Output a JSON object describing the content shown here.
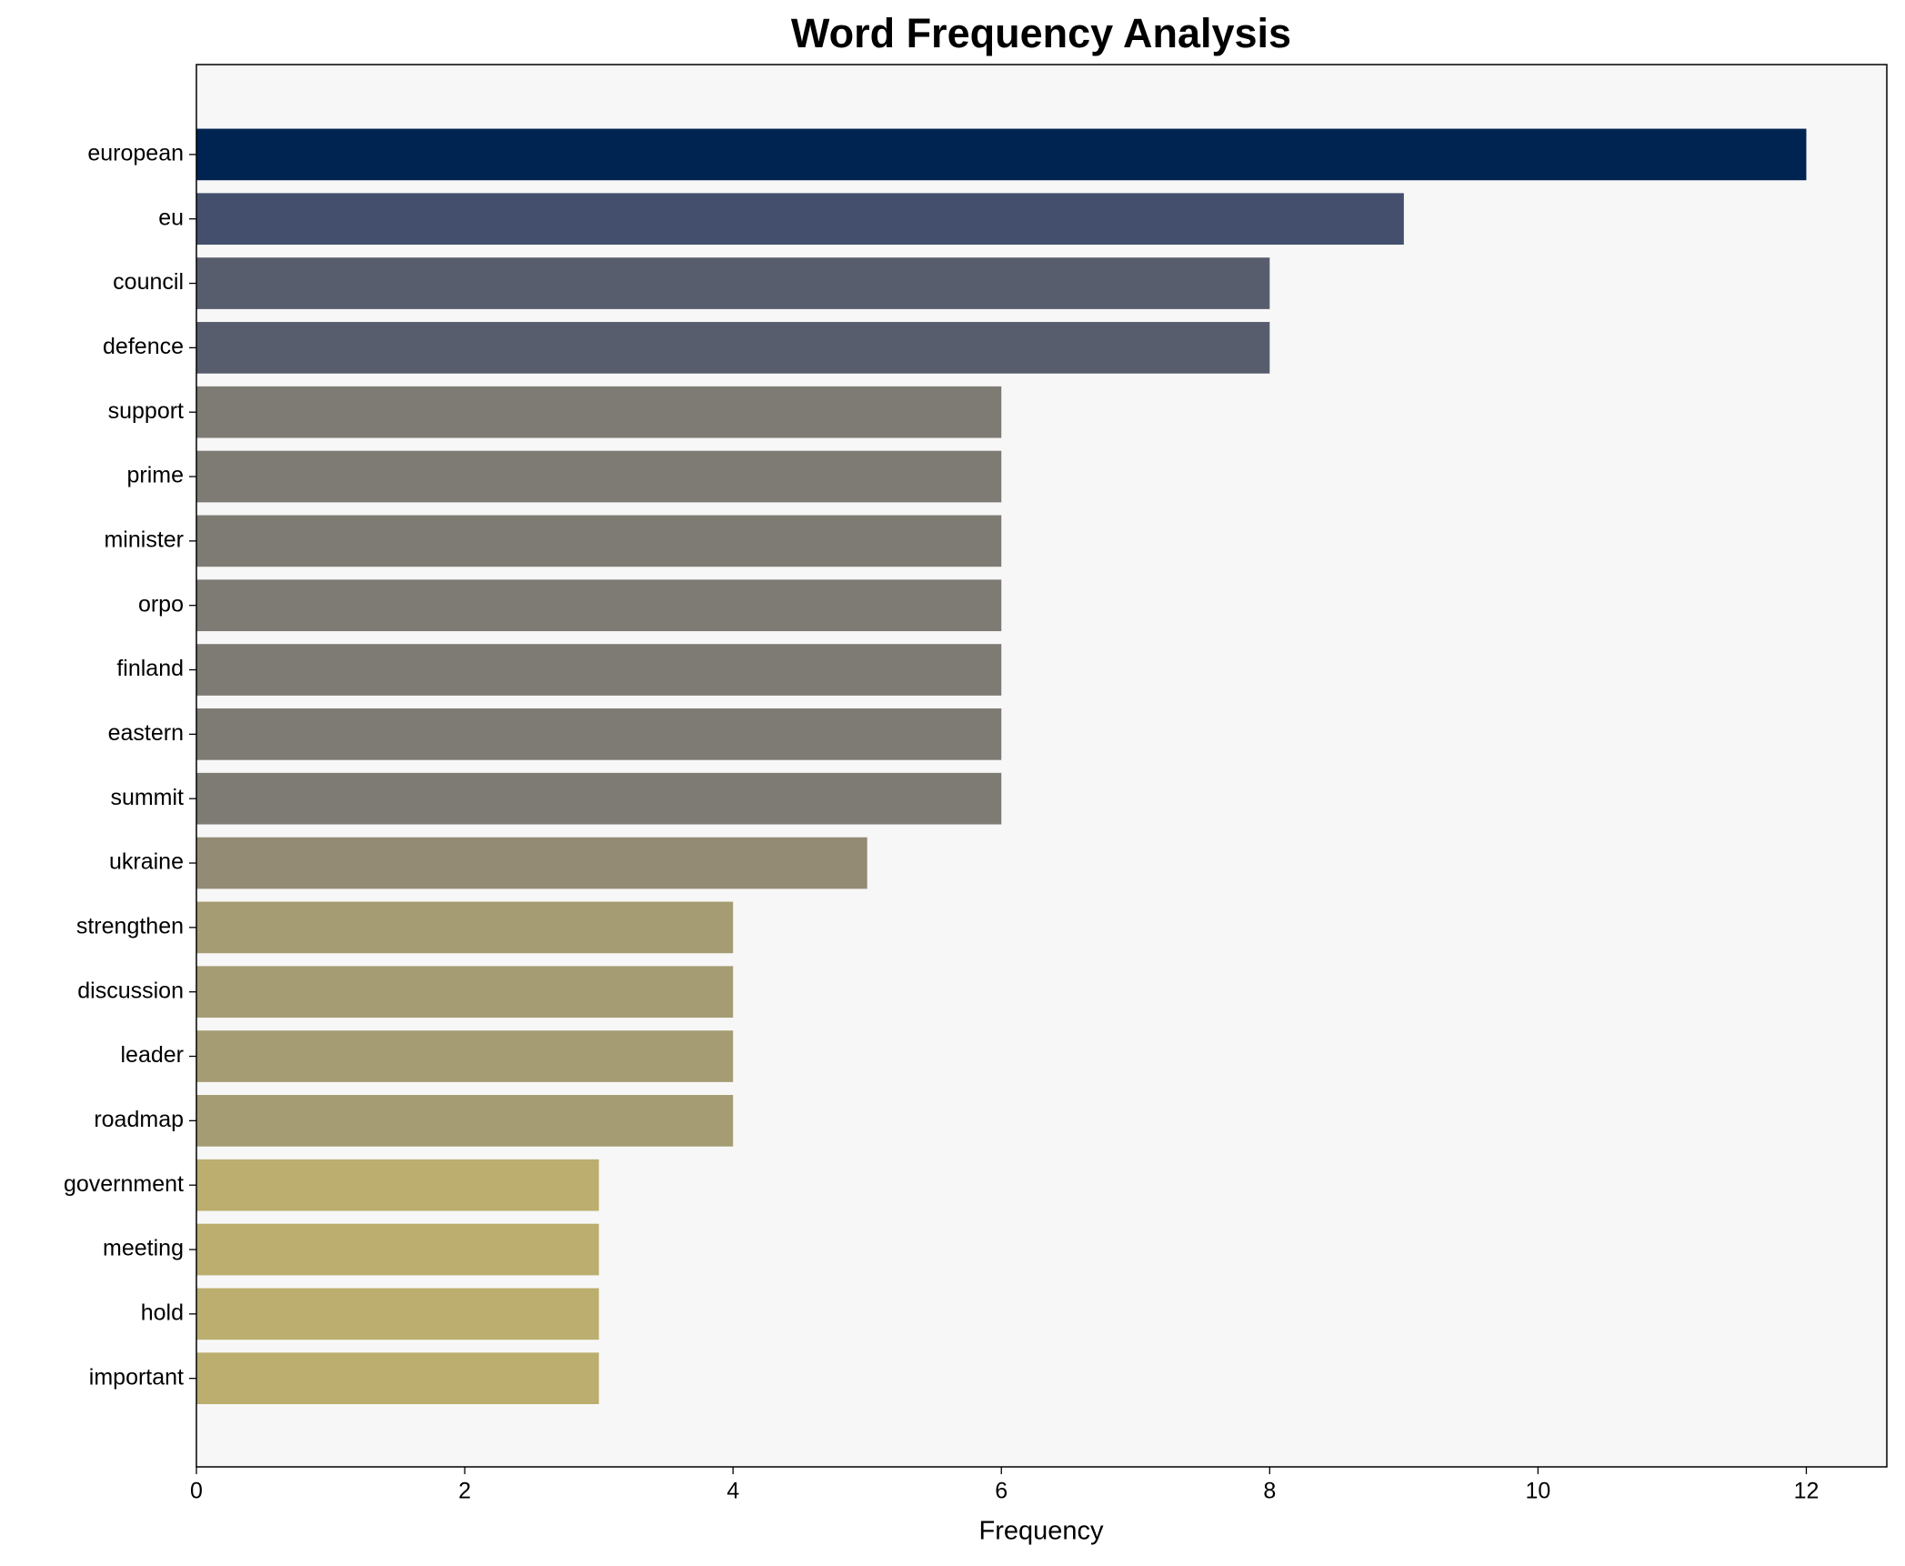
{
  "chart_data": {
    "type": "bar",
    "orientation": "horizontal",
    "title": "Word Frequency Analysis",
    "xlabel": "Frequency",
    "categories": [
      "european",
      "eu",
      "council",
      "defence",
      "support",
      "prime",
      "minister",
      "orpo",
      "finland",
      "eastern",
      "summit",
      "ukraine",
      "strengthen",
      "discussion",
      "leader",
      "roadmap",
      "government",
      "meeting",
      "hold",
      "important"
    ],
    "values": [
      12,
      9,
      8,
      8,
      6,
      6,
      6,
      6,
      6,
      6,
      6,
      5,
      4,
      4,
      4,
      4,
      3,
      3,
      3,
      3
    ],
    "colors": [
      "#002451",
      "#434f6d",
      "#585d6e",
      "#585d6e",
      "#7d7b74",
      "#7d7b74",
      "#7d7b74",
      "#7d7b74",
      "#7d7b74",
      "#7d7b74",
      "#7d7b74",
      "#938b74",
      "#a59c74",
      "#a59c74",
      "#a59c74",
      "#a59c74",
      "#bbae6e",
      "#bbae6e",
      "#bbae6e",
      "#bbae6e"
    ],
    "xlim": [
      0,
      12.6
    ],
    "xticks": [
      0,
      2,
      4,
      6,
      8,
      10,
      12
    ],
    "grid": false
  }
}
